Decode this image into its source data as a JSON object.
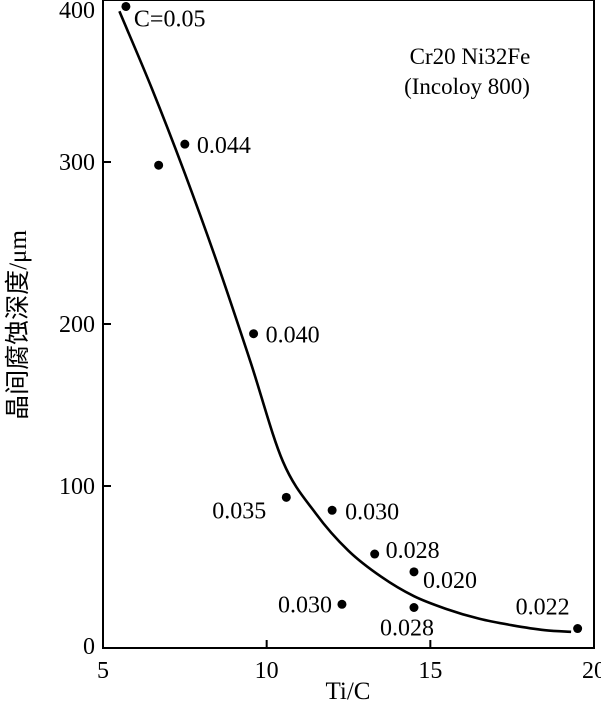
{
  "chart_data": {
    "type": "scatter",
    "xlabel": "Ti/C",
    "ylabel": "晶间腐蚀深度/μm",
    "xlim": [
      5,
      20
    ],
    "ylim": [
      0,
      400
    ],
    "xticks": [
      "5",
      "10",
      "15",
      "20"
    ],
    "yticks": [
      "0",
      "100",
      "200",
      "300",
      "400"
    ],
    "annotation": [
      "Cr20 Ni32Fe",
      "(Incoloy 800)"
    ],
    "points": [
      {
        "x": 5.7,
        "y": 396,
        "label": "C=0.05"
      },
      {
        "x": 6.7,
        "y": 298,
        "label": ""
      },
      {
        "x": 7.5,
        "y": 311,
        "label": "0.044"
      },
      {
        "x": 9.6,
        "y": 194,
        "label": "0.040"
      },
      {
        "x": 10.6,
        "y": 93,
        "label": "0.035"
      },
      {
        "x": 12.0,
        "y": 85,
        "label": "0.030"
      },
      {
        "x": 13.3,
        "y": 58,
        "label": "0.028"
      },
      {
        "x": 14.5,
        "y": 47,
        "label": "0.020"
      },
      {
        "x": 12.3,
        "y": 27,
        "label": "0.030"
      },
      {
        "x": 14.5,
        "y": 25,
        "label": "0.028"
      },
      {
        "x": 19.5,
        "y": 12,
        "label": "0.022"
      }
    ],
    "fit_curve": {
      "x": [
        5.5,
        6.5,
        7.5,
        8.5,
        9.5,
        10.5,
        11.5,
        12.5,
        13.5,
        14.5,
        15.5,
        16.5,
        17.5,
        18.5,
        19.3
      ],
      "y": [
        393,
        345,
        293,
        237,
        177,
        115,
        83,
        60,
        44,
        32,
        24,
        18,
        14,
        11,
        10
      ]
    }
  }
}
